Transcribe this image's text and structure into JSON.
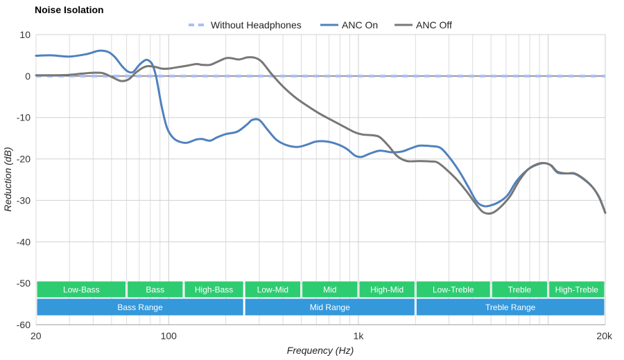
{
  "chart_data": {
    "type": "line",
    "title": "Noise Isolation",
    "xlabel": "Frequency (Hz)",
    "ylabel": "Reduction (dB)",
    "xscale": "log",
    "xlim": [
      20,
      20000
    ],
    "ylim": [
      -60,
      10
    ],
    "yticks": [
      10,
      0,
      -10,
      -20,
      -30,
      -40,
      -50,
      -60
    ],
    "xticks": [
      {
        "value": 20,
        "label": "20"
      },
      {
        "value": 100,
        "label": "100"
      },
      {
        "value": 1000,
        "label": "1k"
      },
      {
        "value": 20000,
        "label": "20k"
      }
    ],
    "grid": true,
    "legend_position": "top",
    "series": [
      {
        "name": "Without Headphones",
        "color": "#a9bff7",
        "style": "dashed",
        "points": [
          [
            20,
            0
          ],
          [
            20000,
            0
          ]
        ]
      },
      {
        "name": "ANC On",
        "color": "#4f81bd",
        "style": "solid",
        "points": [
          [
            20,
            4.9
          ],
          [
            24,
            5.0
          ],
          [
            30,
            4.7
          ],
          [
            37,
            5.3
          ],
          [
            43,
            6.1
          ],
          [
            48,
            5.8
          ],
          [
            52,
            4.6
          ],
          [
            57,
            2.3
          ],
          [
            61,
            1.1
          ],
          [
            65,
            1.0
          ],
          [
            70,
            2.7
          ],
          [
            75,
            3.8
          ],
          [
            78,
            3.8
          ],
          [
            82,
            2.8
          ],
          [
            86,
            -0.3
          ],
          [
            92,
            -7.5
          ],
          [
            98,
            -12.5
          ],
          [
            106,
            -15.0
          ],
          [
            115,
            -15.9
          ],
          [
            125,
            -16.1
          ],
          [
            140,
            -15.3
          ],
          [
            150,
            -15.2
          ],
          [
            165,
            -15.6
          ],
          [
            180,
            -14.8
          ],
          [
            200,
            -14.0
          ],
          [
            230,
            -13.4
          ],
          [
            260,
            -11.6
          ],
          [
            275,
            -10.6
          ],
          [
            300,
            -10.6
          ],
          [
            330,
            -12.8
          ],
          [
            370,
            -15.4
          ],
          [
            420,
            -16.7
          ],
          [
            480,
            -17.1
          ],
          [
            540,
            -16.5
          ],
          [
            600,
            -15.8
          ],
          [
            680,
            -15.8
          ],
          [
            780,
            -16.5
          ],
          [
            870,
            -17.6
          ],
          [
            960,
            -19.2
          ],
          [
            1040,
            -19.5
          ],
          [
            1150,
            -18.7
          ],
          [
            1300,
            -18.0
          ],
          [
            1500,
            -18.4
          ],
          [
            1700,
            -18.2
          ],
          [
            1900,
            -17.4
          ],
          [
            2100,
            -16.8
          ],
          [
            2400,
            -16.9
          ],
          [
            2700,
            -17.3
          ],
          [
            3000,
            -19.5
          ],
          [
            3400,
            -23.0
          ],
          [
            3800,
            -26.8
          ],
          [
            4200,
            -30.3
          ],
          [
            4600,
            -31.4
          ],
          [
            5000,
            -31.2
          ],
          [
            5500,
            -30.4
          ],
          [
            6100,
            -28.8
          ],
          [
            6800,
            -25.4
          ],
          [
            7700,
            -22.8
          ],
          [
            8600,
            -21.5
          ],
          [
            9500,
            -21.0
          ],
          [
            10300,
            -21.5
          ],
          [
            11200,
            -23.3
          ],
          [
            12500,
            -23.5
          ],
          [
            13800,
            -23.6
          ],
          [
            15500,
            -25.0
          ],
          [
            17200,
            -26.9
          ],
          [
            18600,
            -29.4
          ],
          [
            20000,
            -33.0
          ]
        ]
      },
      {
        "name": "ANC Off",
        "color": "#777777",
        "style": "solid",
        "points": [
          [
            20,
            0.2
          ],
          [
            25,
            0.2
          ],
          [
            30,
            0.3
          ],
          [
            35,
            0.6
          ],
          [
            40,
            0.8
          ],
          [
            45,
            0.7
          ],
          [
            50,
            -0.2
          ],
          [
            55,
            -1.1
          ],
          [
            58,
            -1.2
          ],
          [
            62,
            -0.7
          ],
          [
            67,
            0.8
          ],
          [
            73,
            2.0
          ],
          [
            78,
            2.4
          ],
          [
            85,
            2.2
          ],
          [
            92,
            1.8
          ],
          [
            100,
            1.8
          ],
          [
            110,
            2.1
          ],
          [
            125,
            2.5
          ],
          [
            140,
            2.9
          ],
          [
            150,
            2.7
          ],
          [
            165,
            2.7
          ],
          [
            180,
            3.4
          ],
          [
            200,
            4.3
          ],
          [
            215,
            4.3
          ],
          [
            235,
            4.0
          ],
          [
            260,
            4.5
          ],
          [
            285,
            4.4
          ],
          [
            310,
            3.4
          ],
          [
            350,
            0.4
          ],
          [
            400,
            -2.5
          ],
          [
            460,
            -5.0
          ],
          [
            530,
            -7.0
          ],
          [
            620,
            -9.0
          ],
          [
            720,
            -10.6
          ],
          [
            830,
            -12.1
          ],
          [
            950,
            -13.5
          ],
          [
            1050,
            -14.1
          ],
          [
            1200,
            -14.3
          ],
          [
            1300,
            -14.8
          ],
          [
            1450,
            -17.0
          ],
          [
            1600,
            -19.3
          ],
          [
            1800,
            -20.5
          ],
          [
            2100,
            -20.5
          ],
          [
            2400,
            -20.6
          ],
          [
            2600,
            -20.8
          ],
          [
            2900,
            -22.5
          ],
          [
            3300,
            -25.0
          ],
          [
            3700,
            -27.7
          ],
          [
            4100,
            -30.5
          ],
          [
            4500,
            -32.7
          ],
          [
            4850,
            -33.2
          ],
          [
            5200,
            -32.8
          ],
          [
            5700,
            -31.3
          ],
          [
            6300,
            -29.0
          ],
          [
            7000,
            -25.4
          ],
          [
            7800,
            -22.6
          ],
          [
            8800,
            -21.2
          ],
          [
            9600,
            -21.0
          ],
          [
            10400,
            -21.6
          ],
          [
            11200,
            -23.1
          ],
          [
            12500,
            -23.5
          ],
          [
            13800,
            -23.5
          ],
          [
            15500,
            -24.9
          ],
          [
            17200,
            -26.9
          ],
          [
            18600,
            -29.3
          ],
          [
            20000,
            -33.0
          ]
        ]
      }
    ],
    "bands": [
      {
        "label": "Low-Bass",
        "from": 20,
        "to": 60,
        "row": 1,
        "color": "#2ecc71"
      },
      {
        "label": "Bass",
        "from": 60,
        "to": 120,
        "row": 1,
        "color": "#2ecc71"
      },
      {
        "label": "High-Bass",
        "from": 120,
        "to": 250,
        "row": 1,
        "color": "#2ecc71"
      },
      {
        "label": "Low-Mid",
        "from": 250,
        "to": 500,
        "row": 1,
        "color": "#2ecc71"
      },
      {
        "label": "Mid",
        "from": 500,
        "to": 1000,
        "row": 1,
        "color": "#2ecc71"
      },
      {
        "label": "High-Mid",
        "from": 1000,
        "to": 2000,
        "row": 1,
        "color": "#2ecc71"
      },
      {
        "label": "Low-Treble",
        "from": 2000,
        "to": 5000,
        "row": 1,
        "color": "#2ecc71"
      },
      {
        "label": "Treble",
        "from": 5000,
        "to": 10000,
        "row": 1,
        "color": "#2ecc71"
      },
      {
        "label": "High-Treble",
        "from": 10000,
        "to": 20000,
        "row": 1,
        "color": "#2ecc71"
      },
      {
        "label": "Bass Range",
        "from": 20,
        "to": 250,
        "row": 2,
        "color": "#3498db"
      },
      {
        "label": "Mid Range",
        "from": 250,
        "to": 2000,
        "row": 2,
        "color": "#3498db"
      },
      {
        "label": "Treble Range",
        "from": 2000,
        "to": 20000,
        "row": 2,
        "color": "#3498db"
      }
    ]
  }
}
